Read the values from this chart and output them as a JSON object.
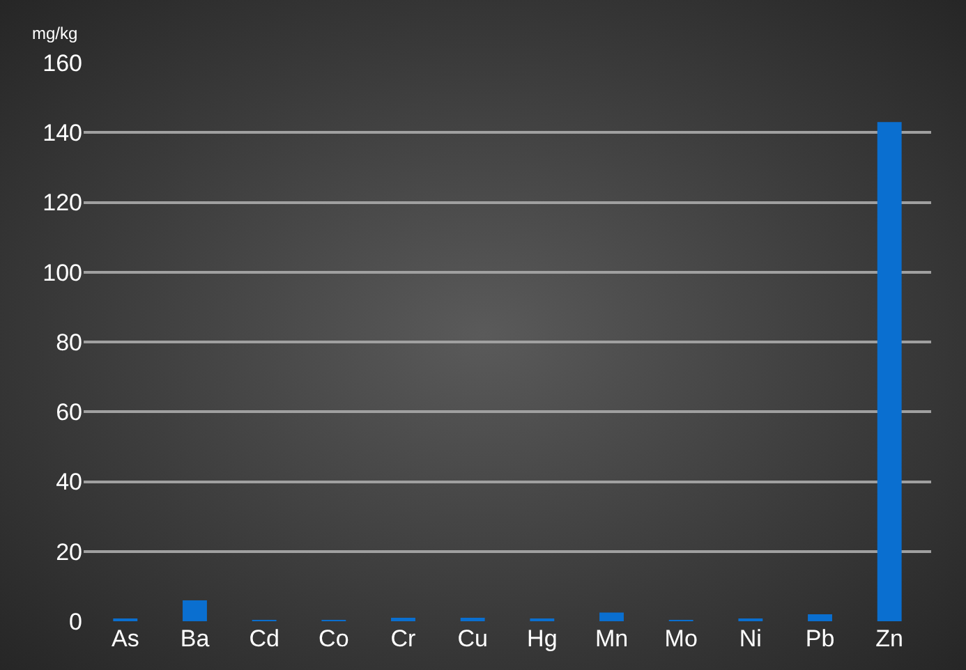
{
  "chart_data": {
    "type": "bar",
    "ylabel": "mg/kg",
    "categories": [
      "As",
      "Ba",
      "Cd",
      "Co",
      "Cr",
      "Cu",
      "Hg",
      "Mn",
      "Mo",
      "Ni",
      "Pb",
      "Zn"
    ],
    "values": [
      0.5,
      6,
      0.3,
      0.3,
      1,
      1,
      0.8,
      2.5,
      0.2,
      0.8,
      2,
      143
    ],
    "color": "#0a6fd0",
    "ylim": [
      0,
      160
    ],
    "yticks": [
      0,
      20,
      40,
      60,
      80,
      100,
      120,
      140,
      160
    ],
    "grid": "y",
    "legend": false
  }
}
